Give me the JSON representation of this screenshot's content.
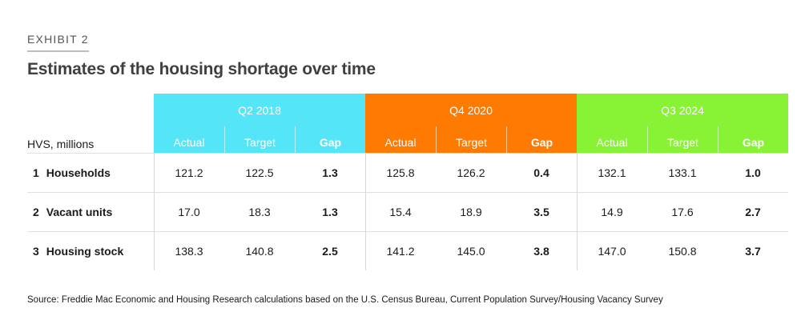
{
  "exhibit": "EXHIBIT 2",
  "title": "Estimates of the housing shortage over time",
  "stub_header": "HVS, millions",
  "source": "Source: Freddie Mac Economic and Housing Research calculations based on the U.S. Census Bureau, Current Population Survey/Housing Vacancy Survey",
  "colors": {
    "q2_2018": "#55E5F8",
    "q4_2020": "#FF7A00",
    "q3_2024": "#88F234"
  },
  "chart_data": {
    "type": "table",
    "title": "Estimates of the housing shortage over time",
    "column_groups": [
      {
        "label": "Q2 2018",
        "columns": [
          "Actual",
          "Target",
          "Gap"
        ]
      },
      {
        "label": "Q4 2020",
        "columns": [
          "Actual",
          "Target",
          "Gap"
        ]
      },
      {
        "label": "Q3 2024",
        "columns": [
          "Actual",
          "Target",
          "Gap"
        ]
      }
    ],
    "rows": [
      {
        "num": "1",
        "label": "Households",
        "values": [
          "121.2",
          "122.5",
          "1.3",
          "125.8",
          "126.2",
          "0.4",
          "132.1",
          "133.1",
          "1.0"
        ]
      },
      {
        "num": "2",
        "label": "Vacant units",
        "values": [
          "17.0",
          "18.3",
          "1.3",
          "15.4",
          "18.9",
          "3.5",
          "14.9",
          "17.6",
          "2.7"
        ]
      },
      {
        "num": "3",
        "label": "Housing stock",
        "values": [
          "138.3",
          "140.8",
          "2.5",
          "141.2",
          "145.0",
          "3.8",
          "147.0",
          "150.8",
          "3.7"
        ]
      }
    ]
  }
}
